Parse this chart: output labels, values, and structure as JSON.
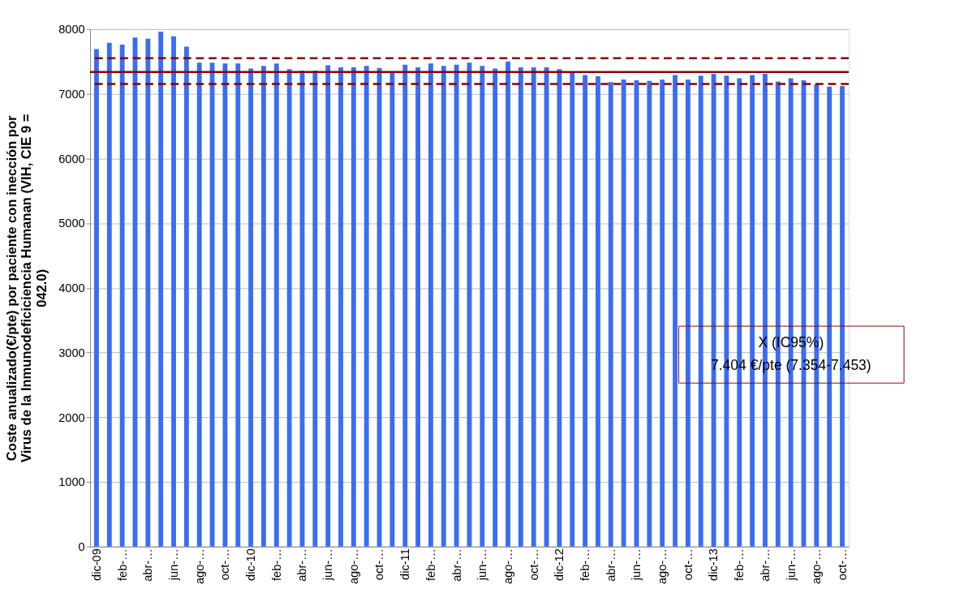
{
  "chart_data": {
    "type": "bar",
    "ylabel": "Coste anualizado(€/pte)  por paciente con inección por\nVirus de la Inmunodeficiciencia Humanan (VIH, CIE 9 =\n042.0)",
    "categories": [
      "dic-09",
      null,
      "feb-…",
      null,
      "abr-…",
      null,
      "jun-…",
      null,
      "ago-…",
      null,
      "oct-…",
      null,
      "dic-10",
      null,
      "feb-…",
      null,
      "abr-…",
      null,
      "jun-…",
      null,
      "ago-…",
      null,
      "oct-…",
      null,
      "dic-11",
      null,
      "feb-…",
      null,
      "abr-…",
      null,
      "jun-…",
      null,
      "ago-…",
      null,
      "oct-…",
      null,
      "dic-12",
      null,
      "feb-…",
      null,
      "abr-…",
      null,
      "jun-…",
      null,
      "ago-…",
      null,
      "oct-…",
      null,
      "dic-13",
      null,
      "feb-…",
      null,
      "abr-…",
      null,
      "jun-…",
      null,
      "ago-…",
      null,
      "oct-…"
    ],
    "values": [
      7690,
      7790,
      7760,
      7870,
      7850,
      7960,
      7890,
      7730,
      7480,
      7480,
      7470,
      7470,
      7390,
      7430,
      7470,
      7380,
      7360,
      7360,
      7440,
      7410,
      7410,
      7430,
      7400,
      7350,
      7450,
      7410,
      7470,
      7430,
      7450,
      7480,
      7430,
      7390,
      7500,
      7410,
      7410,
      7410,
      7380,
      7320,
      7290,
      7270,
      7180,
      7220,
      7210,
      7200,
      7220,
      7290,
      7220,
      7280,
      7310,
      7280,
      7240,
      7290,
      7310,
      7190,
      7240,
      7210,
      7150,
      7110,
      7120
    ],
    "color": "#3a6cf4",
    "ylim": [
      0,
      8000
    ],
    "yticks": [
      0,
      1000,
      2000,
      3000,
      4000,
      5000,
      6000,
      7000,
      8000
    ],
    "grid": "y",
    "ref_lines": [
      {
        "axis": "y",
        "value": 7338,
        "color": "#8b0000",
        "line_style": "solid"
      },
      {
        "axis": "y",
        "value": 7550,
        "color": "#8b0000",
        "line_style": "dashed"
      },
      {
        "axis": "y",
        "value": 7151,
        "color": "#8b0000",
        "line_style": "dashed"
      }
    ],
    "annotations": [
      "X (IC95%)",
      "7.404 €/pte (7.354-7.453)"
    ]
  }
}
